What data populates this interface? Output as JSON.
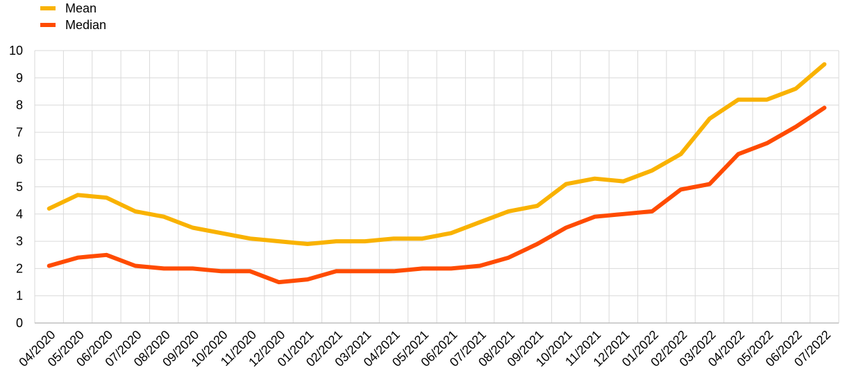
{
  "legend": {
    "mean_label": "Mean",
    "median_label": "Median"
  },
  "colors": {
    "mean": "#F9B200",
    "median": "#FF4B00",
    "grid": "#D9D9D9",
    "axis": "#BFBFBF"
  },
  "chart_data": {
    "type": "line",
    "title": "",
    "xlabel": "",
    "ylabel": "",
    "ylim": [
      0,
      10
    ],
    "yticks": [
      0,
      1,
      2,
      3,
      4,
      5,
      6,
      7,
      8,
      9,
      10
    ],
    "grid": true,
    "legend_position": "top-left",
    "categories": [
      "04/2020",
      "05/2020",
      "06/2020",
      "07/2020",
      "08/2020",
      "09/2020",
      "10/2020",
      "11/2020",
      "12/2020",
      "01/2021",
      "02/2021",
      "03/2021",
      "04/2021",
      "05/2021",
      "06/2021",
      "07/2021",
      "08/2021",
      "09/2021",
      "10/2021",
      "11/2021",
      "12/2021",
      "01/2022",
      "02/2022",
      "03/2022",
      "04/2022",
      "05/2022",
      "06/2022",
      "07/2022"
    ],
    "series": [
      {
        "name": "Mean",
        "values": [
          4.2,
          4.7,
          4.6,
          4.1,
          3.9,
          3.5,
          3.3,
          3.1,
          3.0,
          2.9,
          3.0,
          3.0,
          3.1,
          3.1,
          3.3,
          3.7,
          4.1,
          4.3,
          5.1,
          5.3,
          5.2,
          5.6,
          6.2,
          7.5,
          8.2,
          8.2,
          8.6,
          9.5
        ]
      },
      {
        "name": "Median",
        "values": [
          2.1,
          2.4,
          2.5,
          2.1,
          2.0,
          2.0,
          1.9,
          1.9,
          1.5,
          1.6,
          1.9,
          1.9,
          1.9,
          2.0,
          2.0,
          2.1,
          2.4,
          2.9,
          3.5,
          3.9,
          4.0,
          4.1,
          4.9,
          5.1,
          6.2,
          6.6,
          7.2,
          7.9
        ]
      }
    ]
  }
}
